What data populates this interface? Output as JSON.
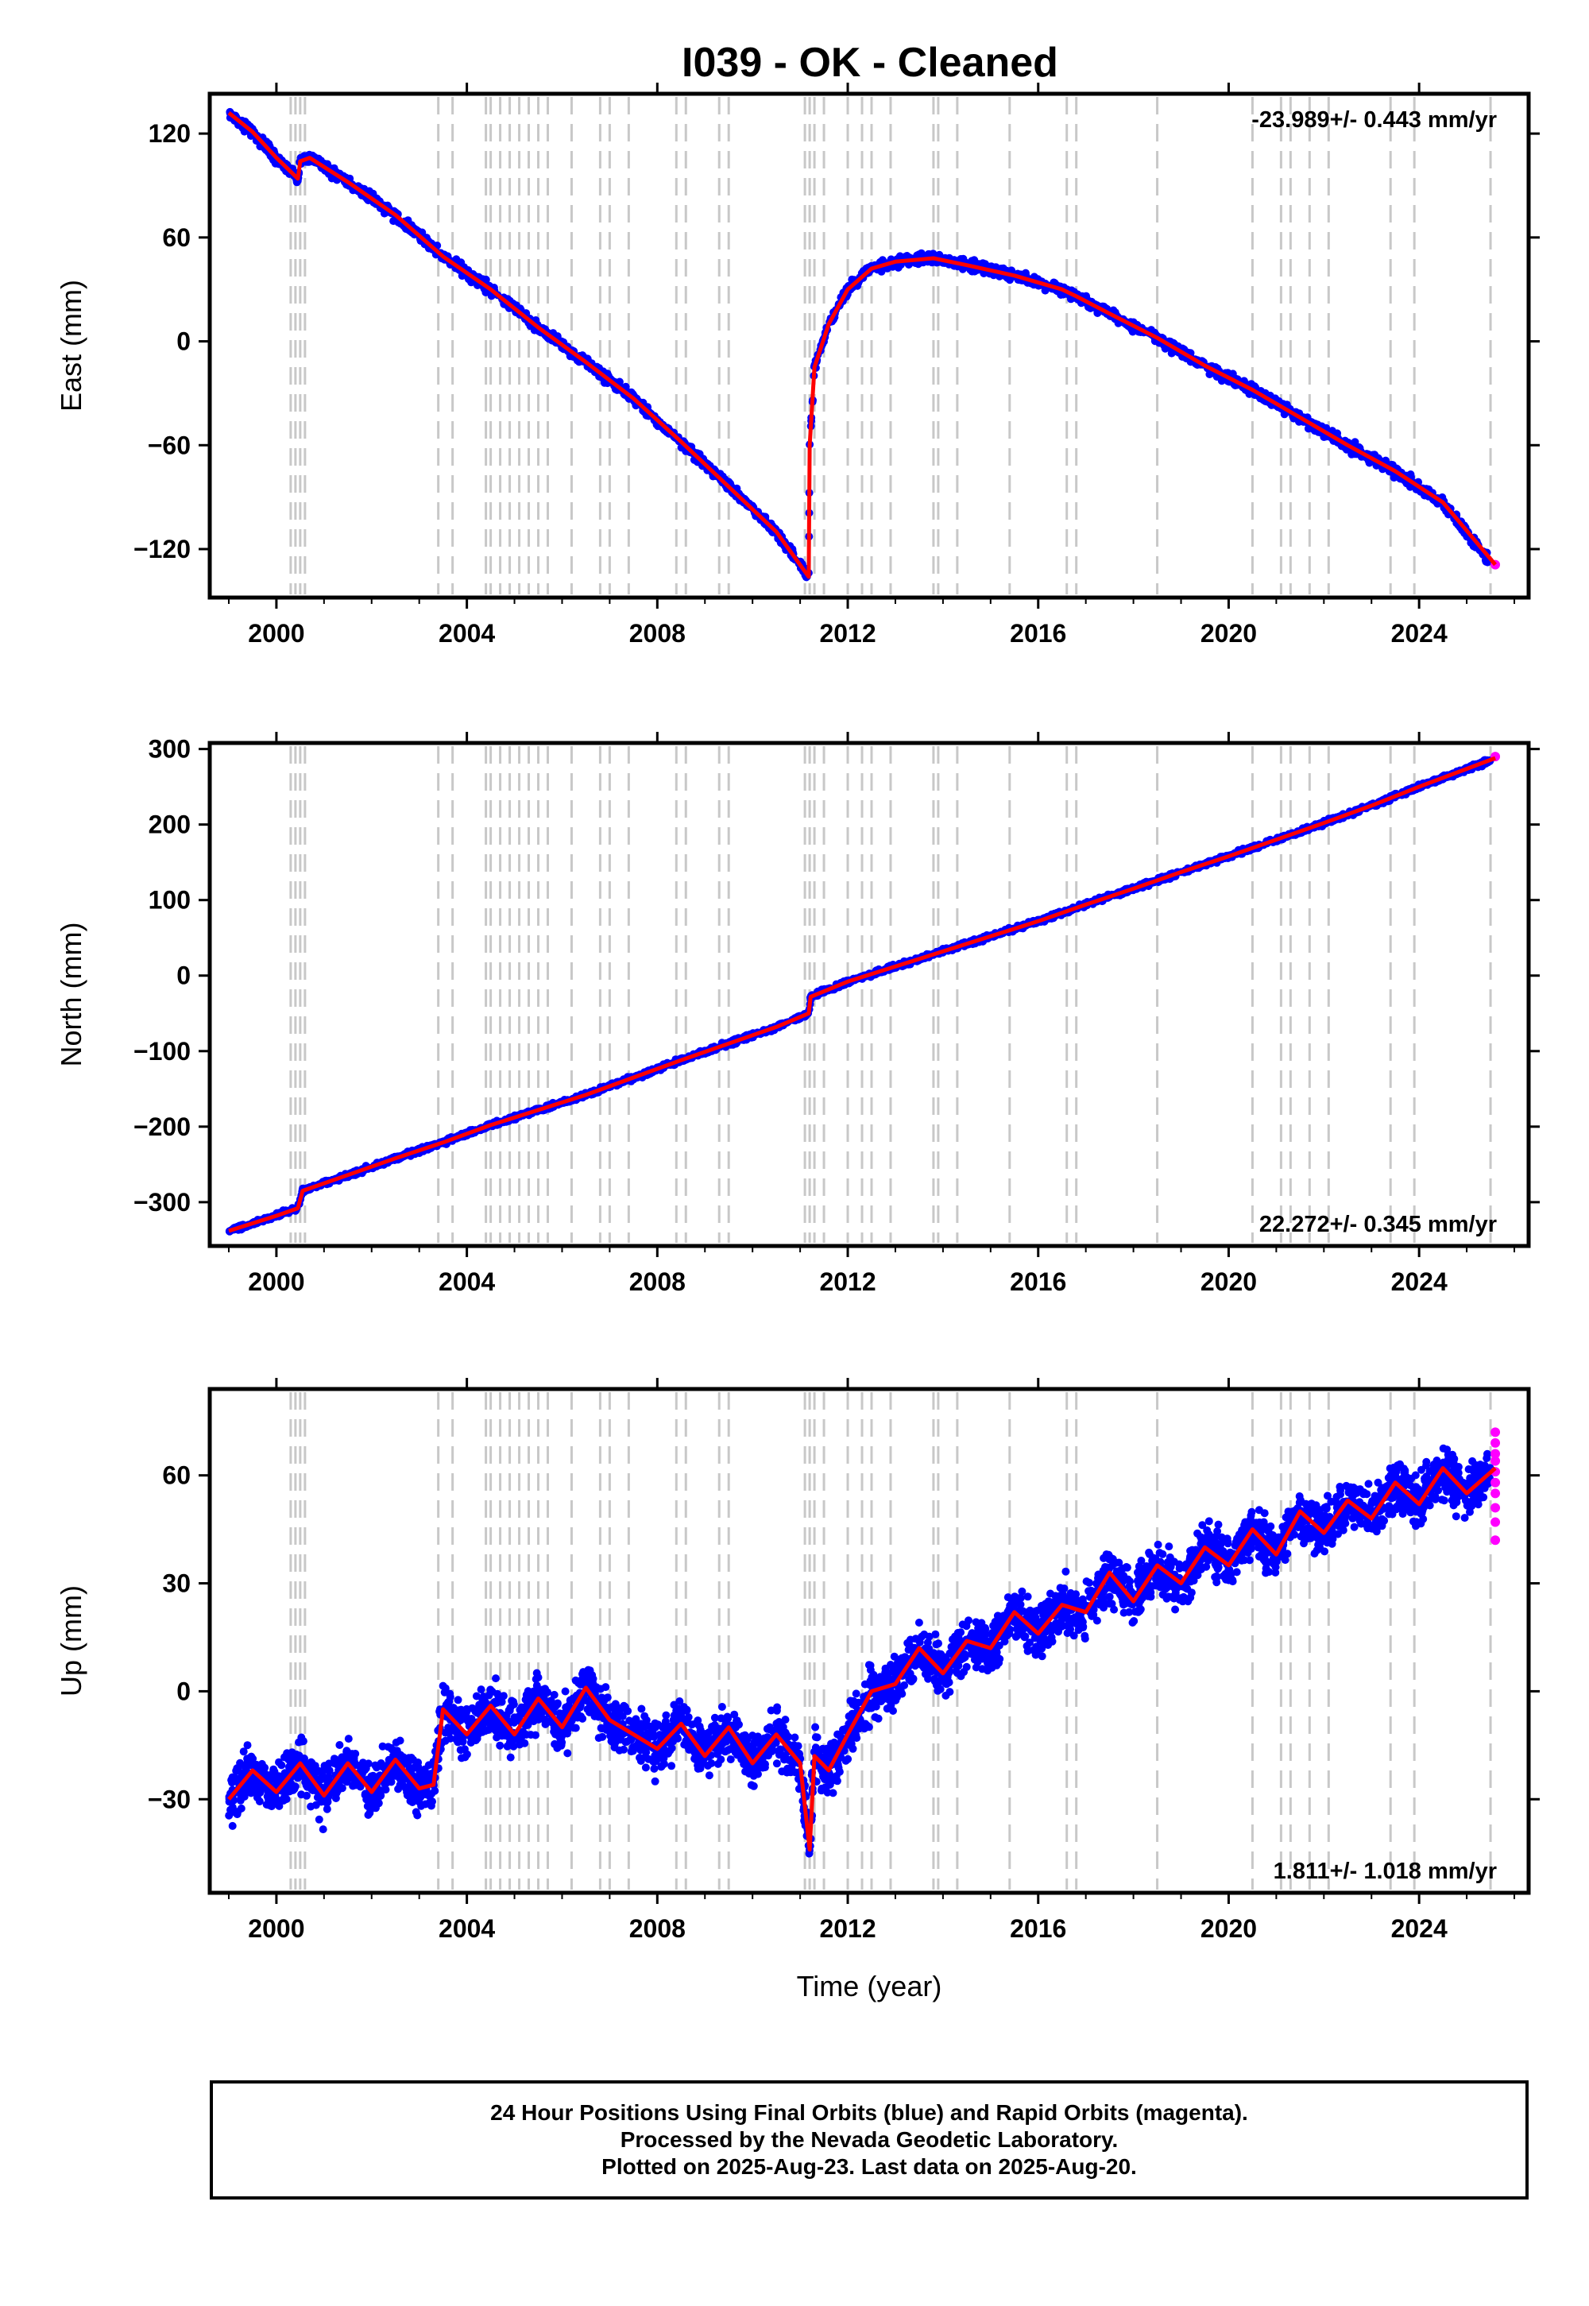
{
  "title": "I039  - OK - Cleaned",
  "colors": {
    "final": "#0000ff",
    "rapid": "#ff00ff",
    "model": "#ff0000",
    "events": "#c8c8c8"
  },
  "xlabel": "Time (year)",
  "caption": {
    "line1": "24 Hour Positions Using Final Orbits (blue) and Rapid Orbits (magenta).",
    "line2": "Processed by the Nevada Geodetic Laboratory.",
    "line3": "Plotted on 2025-Aug-23. Last data on 2025-Aug-20."
  },
  "chart_data": [
    {
      "type": "scatter",
      "component": "east",
      "ylabel": "East (mm)",
      "rate": "-23.989+/- 0.443 mm/yr",
      "xlim": [
        1998.6,
        2026.3
      ],
      "ylim": [
        -148,
        143
      ],
      "xticks": [
        2000,
        2004,
        2008,
        2012,
        2016,
        2020,
        2024
      ],
      "yticks": [
        -120,
        -60,
        0,
        60,
        120
      ],
      "series": [
        {
          "name": "Final Orbits (blue)",
          "x": [
            1999.0,
            1999.5,
            2000.0,
            2000.45,
            2000.5,
            2000.7,
            2001.5,
            2002.5,
            2003.5,
            2004.5,
            2005.5,
            2006.5,
            2007.5,
            2008.5,
            2009.5,
            2010.5,
            2011.18,
            2011.2,
            2011.3,
            2011.6,
            2012.0,
            2012.5,
            2013.0,
            2013.8,
            2014.5,
            2015.5,
            2016.5,
            2016.8,
            2017.5,
            2018.5,
            2019.5,
            2020.5,
            2021.5,
            2022.5,
            2023.5,
            2024.5,
            2025.5
          ],
          "y": [
            132,
            121,
            106,
            94,
            104,
            106,
            92,
            73,
            49,
            30,
            8,
            -12,
            -33,
            -58,
            -84,
            -110,
            -136,
            -60,
            -15,
            10,
            30,
            42,
            46,
            48,
            44,
            38,
            30,
            26,
            16,
            2,
            -14,
            -28,
            -44,
            -60,
            -75,
            -93,
            -128
          ]
        },
        {
          "name": "Rapid Orbits (magenta)",
          "x": [
            2025.6
          ],
          "y": [
            -129
          ]
        }
      ],
      "model": {
        "x": [
          1999.0,
          1999.5,
          2000.0,
          2000.45,
          2000.5,
          2000.7,
          2001.5,
          2002.5,
          2003.5,
          2004.5,
          2005.5,
          2006.5,
          2007.5,
          2008.5,
          2009.5,
          2010.5,
          2011.18,
          2011.2,
          2011.3,
          2011.6,
          2012.0,
          2012.5,
          2013.0,
          2013.8,
          2014.5,
          2015.5,
          2016.5,
          2016.8,
          2017.5,
          2018.5,
          2019.5,
          2020.5,
          2021.5,
          2022.5,
          2023.5,
          2024.5,
          2025.6
        ],
        "y": [
          132,
          121,
          106,
          94,
          104,
          106,
          92,
          73,
          49,
          30,
          8,
          -12,
          -33,
          -58,
          -84,
          -110,
          -136,
          -60,
          -15,
          10,
          30,
          42,
          46,
          48,
          44,
          38,
          30,
          26,
          16,
          2,
          -14,
          -28,
          -44,
          -60,
          -75,
          -93,
          -129
        ]
      }
    },
    {
      "type": "scatter",
      "component": "north",
      "ylabel": "North (mm)",
      "rate": "22.272+/- 0.345 mm/yr",
      "xlim": [
        1998.6,
        2026.3
      ],
      "ylim": [
        -358,
        308
      ],
      "xticks": [
        2000,
        2004,
        2008,
        2012,
        2016,
        2020,
        2024
      ],
      "yticks": [
        -300,
        -200,
        -100,
        0,
        100,
        200,
        300
      ],
      "series": [
        {
          "name": "Final Orbits (blue)",
          "x": [
            1999.0,
            1999.5,
            2000.0,
            2000.45,
            2000.55,
            2001.5,
            2002.5,
            2003.5,
            2004.5,
            2005.5,
            2006.5,
            2007.5,
            2008.5,
            2009.5,
            2010.5,
            2011.18,
            2011.22,
            2012.0,
            2013.0,
            2014.0,
            2015.0,
            2016.0,
            2017.0,
            2018.0,
            2019.0,
            2020.0,
            2021.0,
            2022.0,
            2023.0,
            2024.0,
            2025.5
          ],
          "y": [
            -338,
            -328,
            -318,
            -308,
            -285,
            -264,
            -242,
            -221,
            -198,
            -178,
            -158,
            -135,
            -112,
            -90,
            -68,
            -50,
            -28,
            -8,
            12,
            32,
            52,
            72,
            94,
            115,
            137,
            158,
            180,
            202,
            225,
            250,
            285
          ]
        },
        {
          "name": "Rapid Orbits (magenta)",
          "x": [
            2025.6
          ],
          "y": [
            290
          ]
        }
      ],
      "model": {
        "x": [
          1999.0,
          1999.5,
          2000.0,
          2000.45,
          2000.55,
          2001.5,
          2002.5,
          2003.5,
          2004.5,
          2005.5,
          2006.5,
          2007.5,
          2008.5,
          2009.5,
          2010.5,
          2011.18,
          2011.22,
          2012.0,
          2013.0,
          2014.0,
          2015.0,
          2016.0,
          2017.0,
          2018.0,
          2019.0,
          2020.0,
          2021.0,
          2022.0,
          2023.0,
          2024.0,
          2025.6
        ],
        "y": [
          -338,
          -328,
          -318,
          -308,
          -285,
          -264,
          -242,
          -221,
          -198,
          -178,
          -158,
          -135,
          -112,
          -90,
          -68,
          -50,
          -28,
          -8,
          12,
          32,
          52,
          72,
          94,
          115,
          137,
          158,
          180,
          202,
          225,
          250,
          288
        ]
      }
    },
    {
      "type": "scatter",
      "component": "up",
      "ylabel": "Up (mm)",
      "rate": "1.811+/- 1.018 mm/yr",
      "xlim": [
        1998.6,
        2026.3
      ],
      "ylim": [
        -56,
        84
      ],
      "xticks": [
        2000,
        2004,
        2008,
        2012,
        2016,
        2020,
        2024
      ],
      "yticks": [
        -30,
        0,
        30,
        60
      ],
      "series": [
        {
          "name": "Final Orbits (blue)",
          "x": [
            1999.0,
            1999.5,
            2000.0,
            2000.5,
            2001.0,
            2001.5,
            2002.0,
            2002.5,
            2003.0,
            2003.3,
            2003.5,
            2004.0,
            2004.5,
            2005.0,
            2005.5,
            2006.0,
            2006.5,
            2007.0,
            2007.5,
            2008.0,
            2008.5,
            2009.0,
            2009.5,
            2010.0,
            2010.5,
            2011.0,
            2011.2,
            2011.3,
            2011.6,
            2012.0,
            2012.5,
            2013.0,
            2013.5,
            2014.0,
            2014.5,
            2015.0,
            2015.5,
            2016.0,
            2016.5,
            2017.0,
            2017.5,
            2018.0,
            2018.5,
            2019.0,
            2019.5,
            2020.0,
            2020.5,
            2021.0,
            2021.5,
            2022.0,
            2022.5,
            2023.0,
            2023.5,
            2024.0,
            2024.5,
            2025.0,
            2025.5
          ],
          "y": [
            -30,
            -22,
            -28,
            -20,
            -29,
            -20,
            -28,
            -19,
            -27,
            -26,
            -5,
            -12,
            -4,
            -12,
            -2,
            -10,
            1,
            -8,
            -12,
            -16,
            -9,
            -18,
            -10,
            -20,
            -12,
            -20,
            -44,
            -18,
            -22,
            -12,
            0,
            2,
            12,
            5,
            14,
            12,
            22,
            16,
            24,
            22,
            33,
            25,
            35,
            30,
            40,
            35,
            45,
            38,
            50,
            44,
            53,
            48,
            58,
            52,
            62,
            55,
            62
          ]
        },
        {
          "name": "Rapid Orbits (magenta)",
          "x": [
            2025.6,
            2025.6,
            2025.6,
            2025.6,
            2025.6,
            2025.6,
            2025.6,
            2025.6,
            2025.6,
            2025.6
          ],
          "y": [
            42,
            47,
            51,
            55,
            58,
            61,
            64,
            66,
            69,
            72
          ]
        }
      ],
      "model": {
        "x": [
          1999.0,
          1999.5,
          2000.0,
          2000.5,
          2001.0,
          2001.5,
          2002.0,
          2002.5,
          2003.0,
          2003.3,
          2003.5,
          2004.0,
          2004.5,
          2005.0,
          2005.5,
          2006.0,
          2006.5,
          2007.0,
          2007.5,
          2008.0,
          2008.5,
          2009.0,
          2009.5,
          2010.0,
          2010.5,
          2011.0,
          2011.2,
          2011.3,
          2011.6,
          2012.0,
          2012.5,
          2013.0,
          2013.5,
          2014.0,
          2014.5,
          2015.0,
          2015.5,
          2016.0,
          2016.5,
          2017.0,
          2017.5,
          2018.0,
          2018.5,
          2019.0,
          2019.5,
          2020.0,
          2020.5,
          2021.0,
          2021.5,
          2022.0,
          2022.5,
          2023.0,
          2023.5,
          2024.0,
          2024.5,
          2025.0,
          2025.6
        ],
        "y": [
          -30,
          -22,
          -28,
          -20,
          -29,
          -20,
          -28,
          -19,
          -27,
          -26,
          -5,
          -12,
          -4,
          -12,
          -2,
          -10,
          1,
          -8,
          -12,
          -16,
          -9,
          -18,
          -10,
          -20,
          -12,
          -20,
          -44,
          -18,
          -22,
          -12,
          0,
          2,
          12,
          5,
          14,
          12,
          22,
          16,
          24,
          22,
          33,
          25,
          35,
          30,
          40,
          35,
          45,
          38,
          50,
          44,
          53,
          48,
          58,
          52,
          62,
          55,
          62
        ]
      }
    }
  ],
  "event_years": [
    2000.3,
    2000.4,
    2000.5,
    2000.6,
    2003.4,
    2003.7,
    2004.4,
    2004.5,
    2004.7,
    2004.9,
    2005.1,
    2005.3,
    2005.5,
    2005.7,
    2006.2,
    2006.8,
    2007.0,
    2007.4,
    2008.4,
    2008.6,
    2009.3,
    2009.5,
    2011.1,
    2011.2,
    2011.3,
    2011.5,
    2012.0,
    2012.3,
    2012.5,
    2012.9,
    2013.8,
    2013.9,
    2014.3,
    2015.4,
    2016.6,
    2016.8,
    2018.5,
    2020.5,
    2021.1,
    2021.3,
    2021.7,
    2022.1,
    2023.4,
    2023.9,
    2025.5
  ]
}
